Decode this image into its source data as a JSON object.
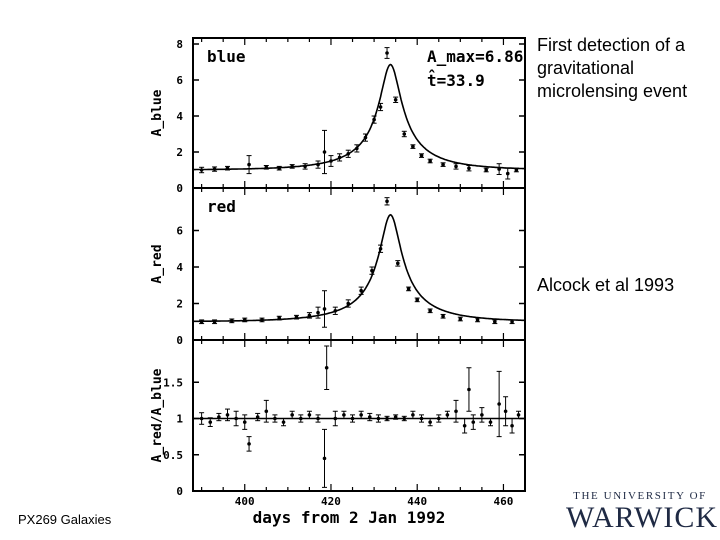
{
  "caption": "First detection of a gravitational microlensing event",
  "citation": "Alcock et al 1993",
  "footer": "PX269 Galaxies",
  "logo": {
    "top": "THE UNIVERSITY OF",
    "main": "WARWICK"
  },
  "colors": {
    "ink": "#000000",
    "logo": "#1f2a44"
  },
  "chart_data": [
    {
      "type": "scatter",
      "panel_label": "blue",
      "annotations": [
        "A_max=6.86",
        "t̂=33.9"
      ],
      "ylabel": "A_blue",
      "ylim": [
        0,
        8
      ],
      "yticks": [
        0,
        2,
        4,
        6,
        8
      ],
      "xlim": [
        388,
        465
      ],
      "model": {
        "A_max": 6.86,
        "t_hat": 33.9,
        "t0": 433.8
      },
      "points": [
        {
          "x": 390,
          "y": 1.0,
          "e": 0.15
        },
        {
          "x": 393,
          "y": 1.05,
          "e": 0.12
        },
        {
          "x": 396,
          "y": 1.1,
          "e": 0.1
        },
        {
          "x": 401,
          "y": 1.3,
          "e": 0.5
        },
        {
          "x": 405,
          "y": 1.15,
          "e": 0.1
        },
        {
          "x": 408,
          "y": 1.1,
          "e": 0.1
        },
        {
          "x": 411,
          "y": 1.2,
          "e": 0.1
        },
        {
          "x": 414,
          "y": 1.2,
          "e": 0.15
        },
        {
          "x": 417,
          "y": 1.3,
          "e": 0.2
        },
        {
          "x": 418.5,
          "y": 2.0,
          "e": 1.2
        },
        {
          "x": 420,
          "y": 1.5,
          "e": 0.3
        },
        {
          "x": 422,
          "y": 1.7,
          "e": 0.2
        },
        {
          "x": 424,
          "y": 1.9,
          "e": 0.2
        },
        {
          "x": 426,
          "y": 2.2,
          "e": 0.2
        },
        {
          "x": 428,
          "y": 2.8,
          "e": 0.2
        },
        {
          "x": 430,
          "y": 3.8,
          "e": 0.2
        },
        {
          "x": 431.5,
          "y": 4.5,
          "e": 0.2
        },
        {
          "x": 433,
          "y": 7.5,
          "e": 0.3
        },
        {
          "x": 435,
          "y": 4.9,
          "e": 0.15
        },
        {
          "x": 437,
          "y": 3.0,
          "e": 0.15
        },
        {
          "x": 439,
          "y": 2.3,
          "e": 0.1
        },
        {
          "x": 441,
          "y": 1.8,
          "e": 0.1
        },
        {
          "x": 443,
          "y": 1.5,
          "e": 0.1
        },
        {
          "x": 446,
          "y": 1.3,
          "e": 0.1
        },
        {
          "x": 449,
          "y": 1.2,
          "e": 0.15
        },
        {
          "x": 452,
          "y": 1.1,
          "e": 0.15
        },
        {
          "x": 456,
          "y": 1.0,
          "e": 0.1
        },
        {
          "x": 459,
          "y": 1.05,
          "e": 0.3
        },
        {
          "x": 461,
          "y": 0.8,
          "e": 0.3
        },
        {
          "x": 463,
          "y": 1.0,
          "e": 0.1
        }
      ]
    },
    {
      "type": "scatter",
      "panel_label": "red",
      "annotations": [],
      "ylabel": "A_red",
      "ylim": [
        0,
        8
      ],
      "yticks": [
        0,
        2,
        4,
        6
      ],
      "xlim": [
        388,
        465
      ],
      "model": {
        "A_max": 6.86,
        "t_hat": 33.9,
        "t0": 433.8
      },
      "points": [
        {
          "x": 390,
          "y": 1.0,
          "e": 0.1
        },
        {
          "x": 393,
          "y": 1.0,
          "e": 0.1
        },
        {
          "x": 397,
          "y": 1.05,
          "e": 0.1
        },
        {
          "x": 400,
          "y": 1.1,
          "e": 0.1
        },
        {
          "x": 404,
          "y": 1.1,
          "e": 0.1
        },
        {
          "x": 408,
          "y": 1.2,
          "e": 0.1
        },
        {
          "x": 412,
          "y": 1.25,
          "e": 0.1
        },
        {
          "x": 415,
          "y": 1.35,
          "e": 0.15
        },
        {
          "x": 417,
          "y": 1.5,
          "e": 0.3
        },
        {
          "x": 418.5,
          "y": 1.7,
          "e": 1.0
        },
        {
          "x": 421,
          "y": 1.6,
          "e": 0.2
        },
        {
          "x": 424,
          "y": 2.0,
          "e": 0.2
        },
        {
          "x": 427,
          "y": 2.7,
          "e": 0.2
        },
        {
          "x": 429.5,
          "y": 3.8,
          "e": 0.2
        },
        {
          "x": 431.5,
          "y": 5.0,
          "e": 0.2
        },
        {
          "x": 433,
          "y": 7.6,
          "e": 0.2
        },
        {
          "x": 435.5,
          "y": 4.2,
          "e": 0.15
        },
        {
          "x": 438,
          "y": 2.8,
          "e": 0.1
        },
        {
          "x": 440,
          "y": 2.2,
          "e": 0.1
        },
        {
          "x": 443,
          "y": 1.6,
          "e": 0.1
        },
        {
          "x": 446,
          "y": 1.3,
          "e": 0.1
        },
        {
          "x": 450,
          "y": 1.15,
          "e": 0.1
        },
        {
          "x": 454,
          "y": 1.1,
          "e": 0.1
        },
        {
          "x": 458,
          "y": 1.0,
          "e": 0.1
        },
        {
          "x": 462,
          "y": 1.0,
          "e": 0.1
        }
      ]
    },
    {
      "type": "scatter",
      "panel_label": "",
      "annotations": [],
      "ylabel": "A_red/A_blue",
      "ylim": [
        0,
        2
      ],
      "yticks": [
        0,
        0.5,
        1,
        1.5
      ],
      "ytick_labels": [
        "0",
        "0.5",
        "1",
        "1.5"
      ],
      "xlim": [
        388,
        465
      ],
      "xticks": [
        400,
        420,
        440,
        460
      ],
      "xlabel": "days from 2 Jan 1992",
      "reference_line": 1.0,
      "points": [
        {
          "x": 390,
          "y": 1.0,
          "e": 0.08
        },
        {
          "x": 392,
          "y": 0.95,
          "e": 0.06
        },
        {
          "x": 394,
          "y": 1.02,
          "e": 0.05
        },
        {
          "x": 396,
          "y": 1.05,
          "e": 0.08
        },
        {
          "x": 398,
          "y": 1.0,
          "e": 0.1
        },
        {
          "x": 400,
          "y": 0.95,
          "e": 0.1
        },
        {
          "x": 401,
          "y": 0.65,
          "e": 0.1
        },
        {
          "x": 403,
          "y": 1.02,
          "e": 0.05
        },
        {
          "x": 405,
          "y": 1.1,
          "e": 0.15
        },
        {
          "x": 407,
          "y": 1.0,
          "e": 0.05
        },
        {
          "x": 409,
          "y": 0.95,
          "e": 0.05
        },
        {
          "x": 411,
          "y": 1.05,
          "e": 0.05
        },
        {
          "x": 413,
          "y": 1.0,
          "e": 0.05
        },
        {
          "x": 415,
          "y": 1.05,
          "e": 0.05
        },
        {
          "x": 417,
          "y": 1.0,
          "e": 0.05
        },
        {
          "x": 418.5,
          "y": 0.45,
          "e": 0.4
        },
        {
          "x": 419,
          "y": 1.7,
          "e": 0.3
        },
        {
          "x": 421,
          "y": 1.0,
          "e": 0.1
        },
        {
          "x": 423,
          "y": 1.05,
          "e": 0.05
        },
        {
          "x": 425,
          "y": 1.0,
          "e": 0.05
        },
        {
          "x": 427,
          "y": 1.05,
          "e": 0.05
        },
        {
          "x": 429,
          "y": 1.02,
          "e": 0.05
        },
        {
          "x": 431,
          "y": 1.0,
          "e": 0.05
        },
        {
          "x": 433,
          "y": 1.0,
          "e": 0.03
        },
        {
          "x": 435,
          "y": 1.02,
          "e": 0.03
        },
        {
          "x": 437,
          "y": 1.0,
          "e": 0.03
        },
        {
          "x": 439,
          "y": 1.05,
          "e": 0.05
        },
        {
          "x": 441,
          "y": 1.0,
          "e": 0.05
        },
        {
          "x": 443,
          "y": 0.95,
          "e": 0.05
        },
        {
          "x": 445,
          "y": 1.0,
          "e": 0.05
        },
        {
          "x": 447,
          "y": 1.05,
          "e": 0.05
        },
        {
          "x": 449,
          "y": 1.1,
          "e": 0.15
        },
        {
          "x": 451,
          "y": 0.9,
          "e": 0.1
        },
        {
          "x": 452,
          "y": 1.4,
          "e": 0.3
        },
        {
          "x": 453,
          "y": 0.95,
          "e": 0.1
        },
        {
          "x": 455,
          "y": 1.05,
          "e": 0.1
        },
        {
          "x": 457,
          "y": 0.95,
          "e": 0.05
        },
        {
          "x": 459,
          "y": 1.2,
          "e": 0.45
        },
        {
          "x": 460.5,
          "y": 1.1,
          "e": 0.2
        },
        {
          "x": 462,
          "y": 0.9,
          "e": 0.1
        },
        {
          "x": 463.5,
          "y": 1.05,
          "e": 0.05
        }
      ]
    }
  ]
}
